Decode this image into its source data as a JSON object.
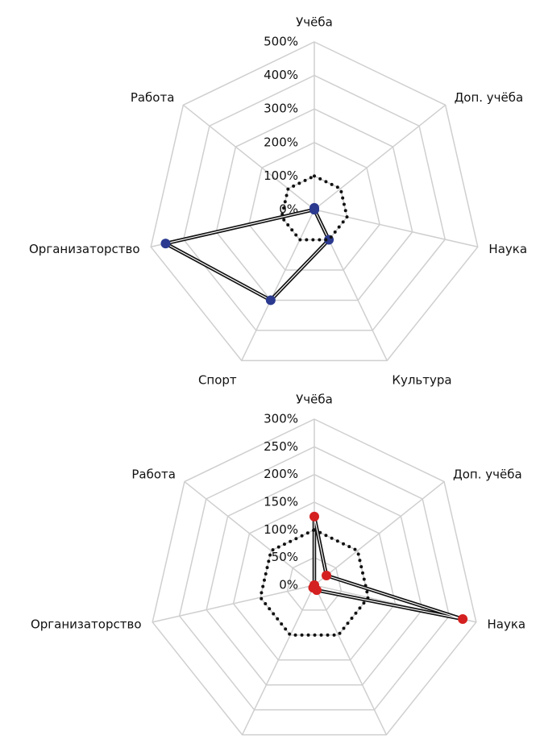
{
  "chart_data": [
    {
      "type": "radar",
      "categories": [
        "Учёба",
        "Доп. учёба",
        "Наука",
        "Культура",
        "Спорт",
        "Организаторство",
        "Работа"
      ],
      "ylim": [
        0,
        500
      ],
      "yticks": [
        {
          "value": 0,
          "label": "0%"
        },
        {
          "value": 100,
          "label": "100%"
        },
        {
          "value": 200,
          "label": "200%"
        },
        {
          "value": 300,
          "label": "300%"
        },
        {
          "value": 400,
          "label": "400%"
        },
        {
          "value": 500,
          "label": "500%"
        }
      ],
      "grid": true,
      "series": [
        {
          "color": "#111111",
          "line": "double",
          "marker_color": "#2b3a8f",
          "values": [
            5,
            0,
            0,
            100,
            300,
            455,
            0
          ]
        },
        {
          "color": "#111111",
          "line": "dotted",
          "values": [
            100,
            100,
            100,
            100,
            100,
            100,
            100
          ]
        }
      ]
    },
    {
      "type": "radar",
      "categories": [
        "Учёба",
        "Доп. учёба",
        "Наука",
        "Культура",
        "Спорт",
        "Организаторство",
        "Работа"
      ],
      "ylim": [
        0,
        300
      ],
      "yticks": [
        {
          "value": 0,
          "label": "0%"
        },
        {
          "value": 50,
          "label": "50%"
        },
        {
          "value": 100,
          "label": "100%"
        },
        {
          "value": 150,
          "label": "150%"
        },
        {
          "value": 200,
          "label": "200%"
        },
        {
          "value": 250,
          "label": "250%"
        },
        {
          "value": 300,
          "label": "300%"
        }
      ],
      "grid": true,
      "series": [
        {
          "color": "#111111",
          "line": "double",
          "marker_color": "#d42020",
          "values": [
            124,
            28,
            275,
            10,
            5,
            0,
            0
          ]
        },
        {
          "color": "#111111",
          "line": "dotted",
          "values": [
            100,
            100,
            100,
            100,
            100,
            100,
            100
          ]
        }
      ]
    }
  ]
}
